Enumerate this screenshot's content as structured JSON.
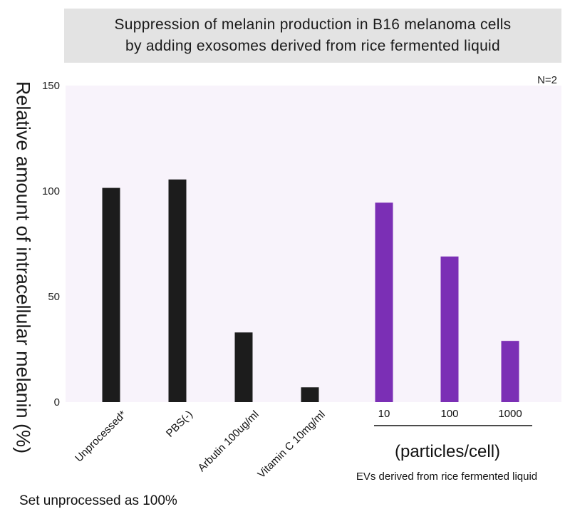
{
  "chart_data": {
    "type": "bar",
    "title_lines": [
      "Suppression of melanin production in B16 melanoma cells",
      "by adding exosomes derived from rice fermented liquid"
    ],
    "ylabel": "Relative amount of intracellular melanin (%)",
    "ylim": [
      0,
      150
    ],
    "yticks": [
      0,
      50,
      100,
      150
    ],
    "categories": [
      "Unprocessed*",
      "PBS(-)",
      "Arbutin 100ug/ml",
      "Vitamin C  10mg/ml",
      "10",
      "100",
      "1000"
    ],
    "values": [
      101.5,
      105.5,
      33,
      7,
      94.5,
      69,
      29
    ],
    "colors": [
      "#1c1c1c",
      "#1c1c1c",
      "#1c1c1c",
      "#1c1c1c",
      "#7b2fb5",
      "#7b2fb5",
      "#7b2fb5"
    ],
    "annotation_n": "N=2",
    "group_unit": "(particles/cell)",
    "group_label": "EVs derived from rice fermented liquid",
    "footnote": "Set unprocessed as 100%"
  }
}
